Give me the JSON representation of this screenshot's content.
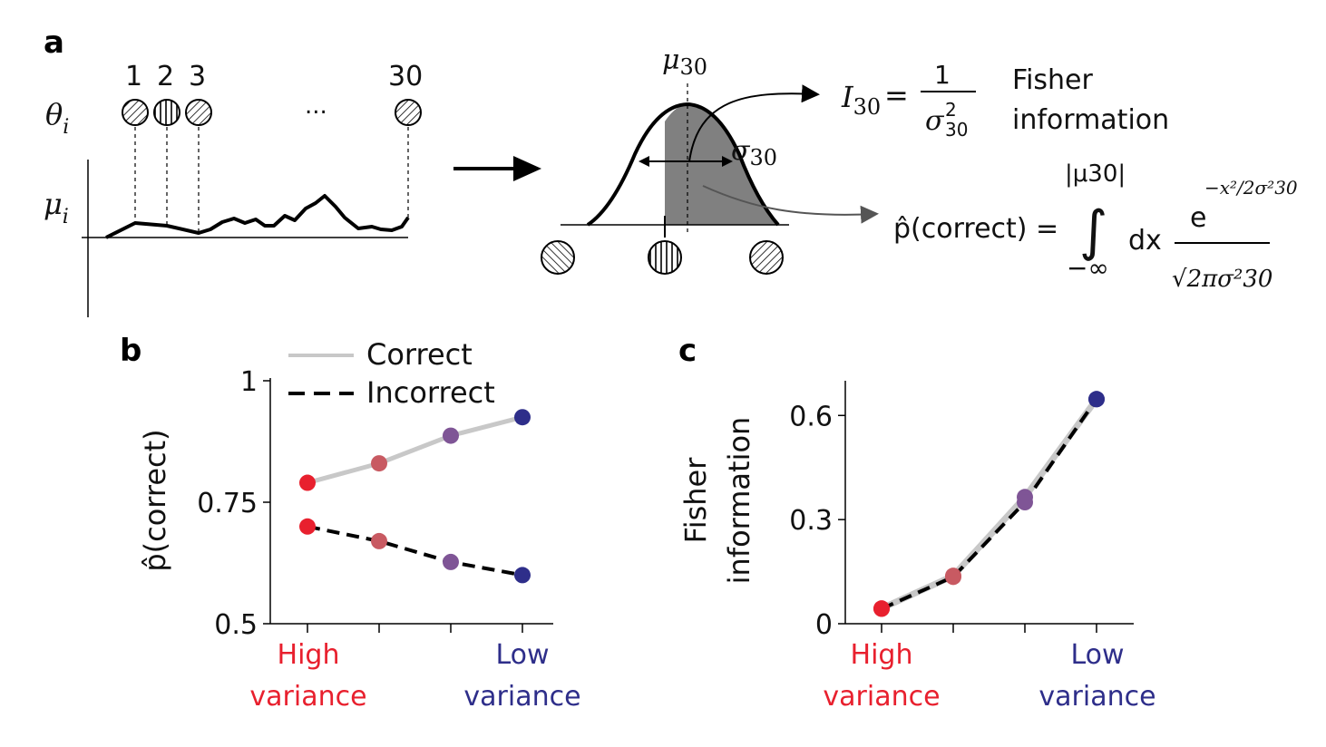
{
  "panel_a": {
    "letter": "a",
    "stimulus_numbers": [
      "1",
      "2",
      "3",
      "30"
    ],
    "ellipsis": "...",
    "theta_label": "θ",
    "theta_sub": "i",
    "mu_label": "μ",
    "mu_sub": "i",
    "mu30_label": "μ",
    "mu30_sub": "30",
    "sigma_label": "σ",
    "sigma_sub": "30",
    "fisher_formula": {
      "lhs": "I",
      "lhs_sub": "30",
      "equals": "=",
      "numerator": "1",
      "denominator": "σ",
      "den_sup": "2",
      "den_sub": "30",
      "caption_line1": "Fisher",
      "caption_line2": "information"
    },
    "pcorrect_formula": {
      "lhs": "p̂(correct) =",
      "upper_limit": "|μ30|",
      "lower_limit": "−∞",
      "integral": "∫",
      "dx": "dx",
      "numerator": "e",
      "exponent": "−x²/2σ²30",
      "denominator": "√2πσ²30"
    }
  },
  "panel_b": {
    "letter": "b",
    "legend": [
      "Correct",
      "Incorrect"
    ],
    "ylabel": "p̂(correct)",
    "yticks": [
      "0.5",
      "0.75",
      "1"
    ],
    "xlabel_left": [
      "High",
      "variance"
    ],
    "xlabel_right": [
      "Low",
      "variance"
    ],
    "colors": {
      "correct_line": "#c8c8c8",
      "incorrect_line": "#000000",
      "high": "#e8202e",
      "low": "#2e2e8a"
    }
  },
  "panel_c": {
    "letter": "c",
    "ylabel": [
      "Fisher",
      "information"
    ],
    "yticks": [
      "0",
      "0.3",
      "0.6"
    ],
    "xlabel_left": [
      "High",
      "variance"
    ],
    "xlabel_right": [
      "Low",
      "variance"
    ]
  },
  "chart_data": [
    {
      "type": "line",
      "panel": "b",
      "x": [
        1,
        2,
        3,
        4
      ],
      "ylim": [
        0.5,
        1
      ],
      "series": [
        {
          "name": "Correct",
          "values": [
            0.79,
            0.83,
            0.887,
            0.925
          ],
          "colors": [
            "#e8202e",
            "#c85a62",
            "#7f5596",
            "#2e2e8a"
          ]
        },
        {
          "name": "Incorrect",
          "values": [
            0.7,
            0.67,
            0.627,
            0.6
          ],
          "colors": [
            "#e8202e",
            "#c85a62",
            "#7f5596",
            "#2e2e8a"
          ]
        }
      ]
    },
    {
      "type": "line",
      "panel": "c",
      "x": [
        1,
        2,
        3,
        4
      ],
      "ylim": [
        0,
        0.7
      ],
      "series": [
        {
          "name": "Correct",
          "values": [
            0.044,
            0.138,
            0.365,
            0.647
          ],
          "colors": [
            "#e8202e",
            "#c85a62",
            "#7f5596",
            "#2e2e8a"
          ]
        },
        {
          "name": "Incorrect",
          "values": [
            0.043,
            0.135,
            0.35,
            0.647
          ],
          "colors": [
            "#e8202e",
            "#c85a62",
            "#7f5596",
            "#2e2e8a"
          ]
        }
      ]
    }
  ]
}
